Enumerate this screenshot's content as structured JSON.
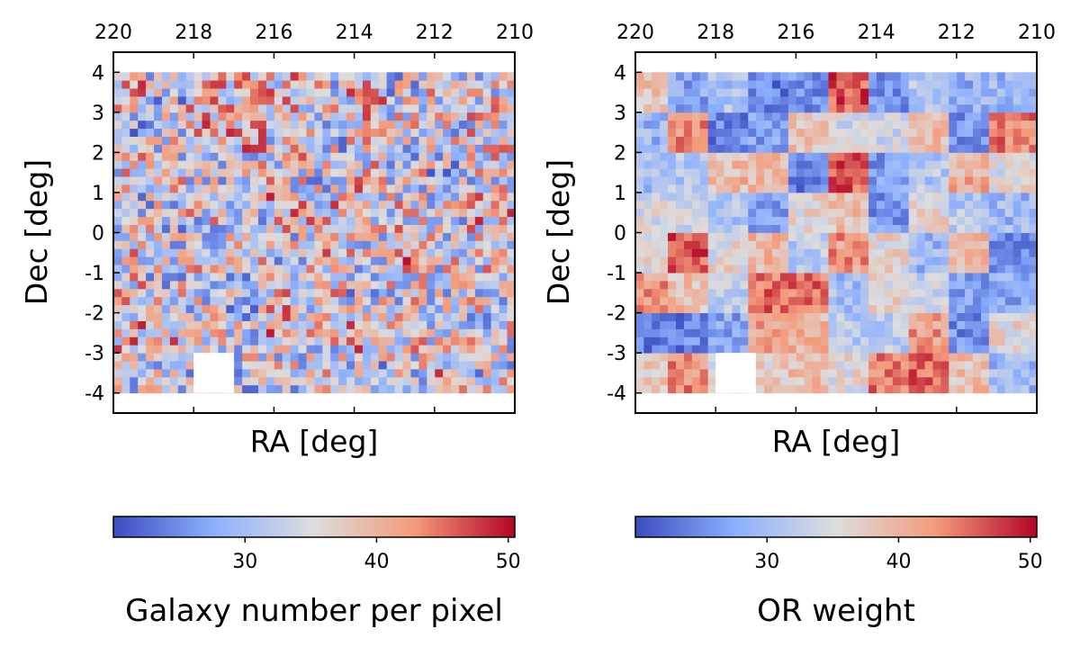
{
  "chart_data": [
    {
      "type": "heatmap",
      "title": "",
      "xlabel": "RA [deg]",
      "ylabel": "Dec [deg]",
      "xlim": [
        220,
        210
      ],
      "ylim": [
        -4.5,
        4.5
      ],
      "xticks": [
        220,
        218,
        216,
        214,
        212,
        210
      ],
      "yticks": [
        4,
        3,
        2,
        1,
        0,
        -1,
        -2,
        -3,
        -4
      ],
      "colorbar": {
        "label": "Galaxy number per pixel",
        "range": [
          20,
          50.5
        ],
        "ticks": [
          30,
          40,
          50
        ],
        "cmap": "coolwarm"
      },
      "field": {
        "ra": [
          210,
          220
        ],
        "dec": [
          -4,
          4
        ]
      },
      "masked_region": {
        "ra": [
          217,
          218
        ],
        "dec": [
          -4,
          -3
        ]
      }
    },
    {
      "type": "heatmap",
      "title": "",
      "xlabel": "RA [deg]",
      "ylabel": "Dec [deg]",
      "xlim": [
        220,
        210
      ],
      "ylim": [
        -4.5,
        4.5
      ],
      "xticks": [
        220,
        218,
        216,
        214,
        212,
        210
      ],
      "yticks": [
        4,
        3,
        2,
        1,
        0,
        -1,
        -2,
        -3,
        -4
      ],
      "colorbar": {
        "label": "OR weight",
        "range": [
          20,
          50.5
        ],
        "ticks": [
          30,
          40,
          50
        ],
        "cmap": "coolwarm"
      },
      "field": {
        "ra": [
          210,
          220
        ],
        "dec": [
          -4,
          4
        ]
      },
      "masked_region": {
        "ra": [
          217,
          218
        ],
        "dec": [
          -4,
          -3
        ]
      }
    }
  ],
  "colors": {
    "cmap_low": "#3b4cc0",
    "cmap_mid": "#dddddd",
    "cmap_high": "#b40426",
    "frame": "#000000",
    "mask": "#ffffff"
  }
}
